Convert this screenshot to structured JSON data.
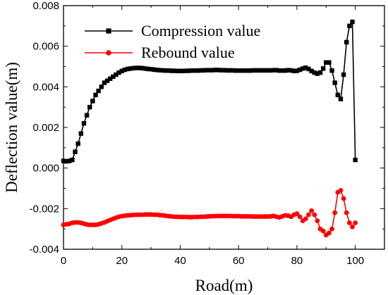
{
  "chart_data": {
    "type": "line",
    "xlabel": "Road(m)",
    "ylabel": "Deflection value(m)",
    "xlim": [
      0,
      110
    ],
    "ylim": [
      -0.004,
      0.008
    ],
    "xticks": [
      "0",
      "20",
      "40",
      "60",
      "80",
      "100"
    ],
    "yticks": [
      "-0.004",
      "-0.002",
      "0.000",
      "0.002",
      "0.004",
      "0.006",
      "0.008"
    ],
    "grid": false,
    "legend_position": "top-left",
    "series": [
      {
        "name": "Compression value",
        "color": "#000000",
        "marker": "square",
        "x": [
          0,
          1,
          2,
          3,
          4,
          5,
          6,
          7,
          8,
          9,
          10,
          11,
          12,
          13,
          14,
          15,
          16,
          17,
          18,
          19,
          20,
          21,
          22,
          23,
          24,
          25,
          26,
          27,
          28,
          29,
          30,
          31,
          32,
          33,
          34,
          35,
          36,
          37,
          38,
          39,
          40,
          41,
          42,
          43,
          44,
          45,
          46,
          47,
          48,
          49,
          50,
          51,
          52,
          53,
          54,
          55,
          56,
          57,
          58,
          59,
          60,
          61,
          62,
          63,
          64,
          65,
          66,
          67,
          68,
          69,
          70,
          71,
          72,
          73,
          74,
          75,
          76,
          77,
          78,
          79,
          80,
          81,
          82,
          83,
          84,
          85,
          86,
          87,
          88,
          89,
          90,
          91,
          92,
          93,
          94,
          95,
          96,
          97,
          98,
          99,
          100
        ],
        "y": [
          0.00035,
          0.00033,
          0.00035,
          0.0004,
          0.0008,
          0.0012,
          0.0017,
          0.0022,
          0.0026,
          0.003,
          0.0033,
          0.0036,
          0.0038,
          0.004,
          0.0042,
          0.0043,
          0.0044,
          0.0045,
          0.0046,
          0.0047,
          0.00478,
          0.00484,
          0.00488,
          0.0049,
          0.00492,
          0.00493,
          0.00493,
          0.00492,
          0.0049,
          0.00488,
          0.00487,
          0.00485,
          0.00483,
          0.00482,
          0.00481,
          0.0048,
          0.0048,
          0.00479,
          0.00479,
          0.00478,
          0.00478,
          0.00478,
          0.00479,
          0.00479,
          0.0048,
          0.0048,
          0.0048,
          0.00481,
          0.00481,
          0.00482,
          0.00482,
          0.00482,
          0.00483,
          0.00483,
          0.00482,
          0.00482,
          0.00481,
          0.00481,
          0.00481,
          0.0048,
          0.0048,
          0.0048,
          0.0048,
          0.0048,
          0.0048,
          0.00481,
          0.00481,
          0.00481,
          0.00481,
          0.00481,
          0.00481,
          0.00481,
          0.00482,
          0.00482,
          0.0048,
          0.0048,
          0.0048,
          0.00482,
          0.00481,
          0.00478,
          0.00479,
          0.00484,
          0.0049,
          0.00494,
          0.00488,
          0.00478,
          0.0047,
          0.00465,
          0.0047,
          0.0049,
          0.0052,
          0.0052,
          0.0048,
          0.0042,
          0.0036,
          0.0034,
          0.0046,
          0.0062,
          0.007,
          0.0072,
          0.0004
        ]
      },
      {
        "name": "Rebound value",
        "color": "#ff0000",
        "marker": "circle",
        "x": [
          0,
          1,
          2,
          3,
          4,
          5,
          6,
          7,
          8,
          9,
          10,
          11,
          12,
          13,
          14,
          15,
          16,
          17,
          18,
          19,
          20,
          21,
          22,
          23,
          24,
          25,
          26,
          27,
          28,
          29,
          30,
          31,
          32,
          33,
          34,
          35,
          36,
          37,
          38,
          39,
          40,
          41,
          42,
          43,
          44,
          45,
          46,
          47,
          48,
          49,
          50,
          51,
          52,
          53,
          54,
          55,
          56,
          57,
          58,
          59,
          60,
          61,
          62,
          63,
          64,
          65,
          66,
          67,
          68,
          69,
          70,
          71,
          72,
          73,
          74,
          75,
          76,
          77,
          78,
          79,
          80,
          81,
          82,
          83,
          84,
          85,
          86,
          87,
          88,
          89,
          90,
          91,
          92,
          93,
          94,
          95,
          96,
          97,
          98,
          99,
          100
        ],
        "y": [
          -0.0028,
          -0.00277,
          -0.00275,
          -0.0027,
          -0.00268,
          -0.00268,
          -0.0027,
          -0.00274,
          -0.00278,
          -0.0028,
          -0.0028,
          -0.0028,
          -0.00277,
          -0.00273,
          -0.00268,
          -0.00262,
          -0.00256,
          -0.0025,
          -0.00245,
          -0.0024,
          -0.00237,
          -0.00235,
          -0.00233,
          -0.00232,
          -0.00231,
          -0.0023,
          -0.0023,
          -0.0023,
          -0.00229,
          -0.00229,
          -0.00229,
          -0.0023,
          -0.0023,
          -0.00232,
          -0.00233,
          -0.00235,
          -0.00237,
          -0.00238,
          -0.0024,
          -0.0024,
          -0.00241,
          -0.00241,
          -0.00241,
          -0.00242,
          -0.00242,
          -0.00241,
          -0.00241,
          -0.0024,
          -0.0024,
          -0.00239,
          -0.00238,
          -0.00237,
          -0.00237,
          -0.00236,
          -0.00236,
          -0.00236,
          -0.00236,
          -0.00236,
          -0.00237,
          -0.00237,
          -0.00237,
          -0.00238,
          -0.00238,
          -0.00238,
          -0.00238,
          -0.00239,
          -0.00239,
          -0.00239,
          -0.00239,
          -0.00239,
          -0.00239,
          -0.00238,
          -0.00236,
          -0.0024,
          -0.00243,
          -0.00238,
          -0.00233,
          -0.00235,
          -0.0024,
          -0.0023,
          -0.00225,
          -0.0024,
          -0.0026,
          -0.0025,
          -0.0023,
          -0.0021,
          -0.0023,
          -0.0026,
          -0.003,
          -0.0031,
          -0.0033,
          -0.0032,
          -0.003,
          -0.0022,
          -0.0012,
          -0.0011,
          -0.0015,
          -0.0022,
          -0.0027,
          -0.0029,
          -0.0027
        ]
      }
    ]
  }
}
